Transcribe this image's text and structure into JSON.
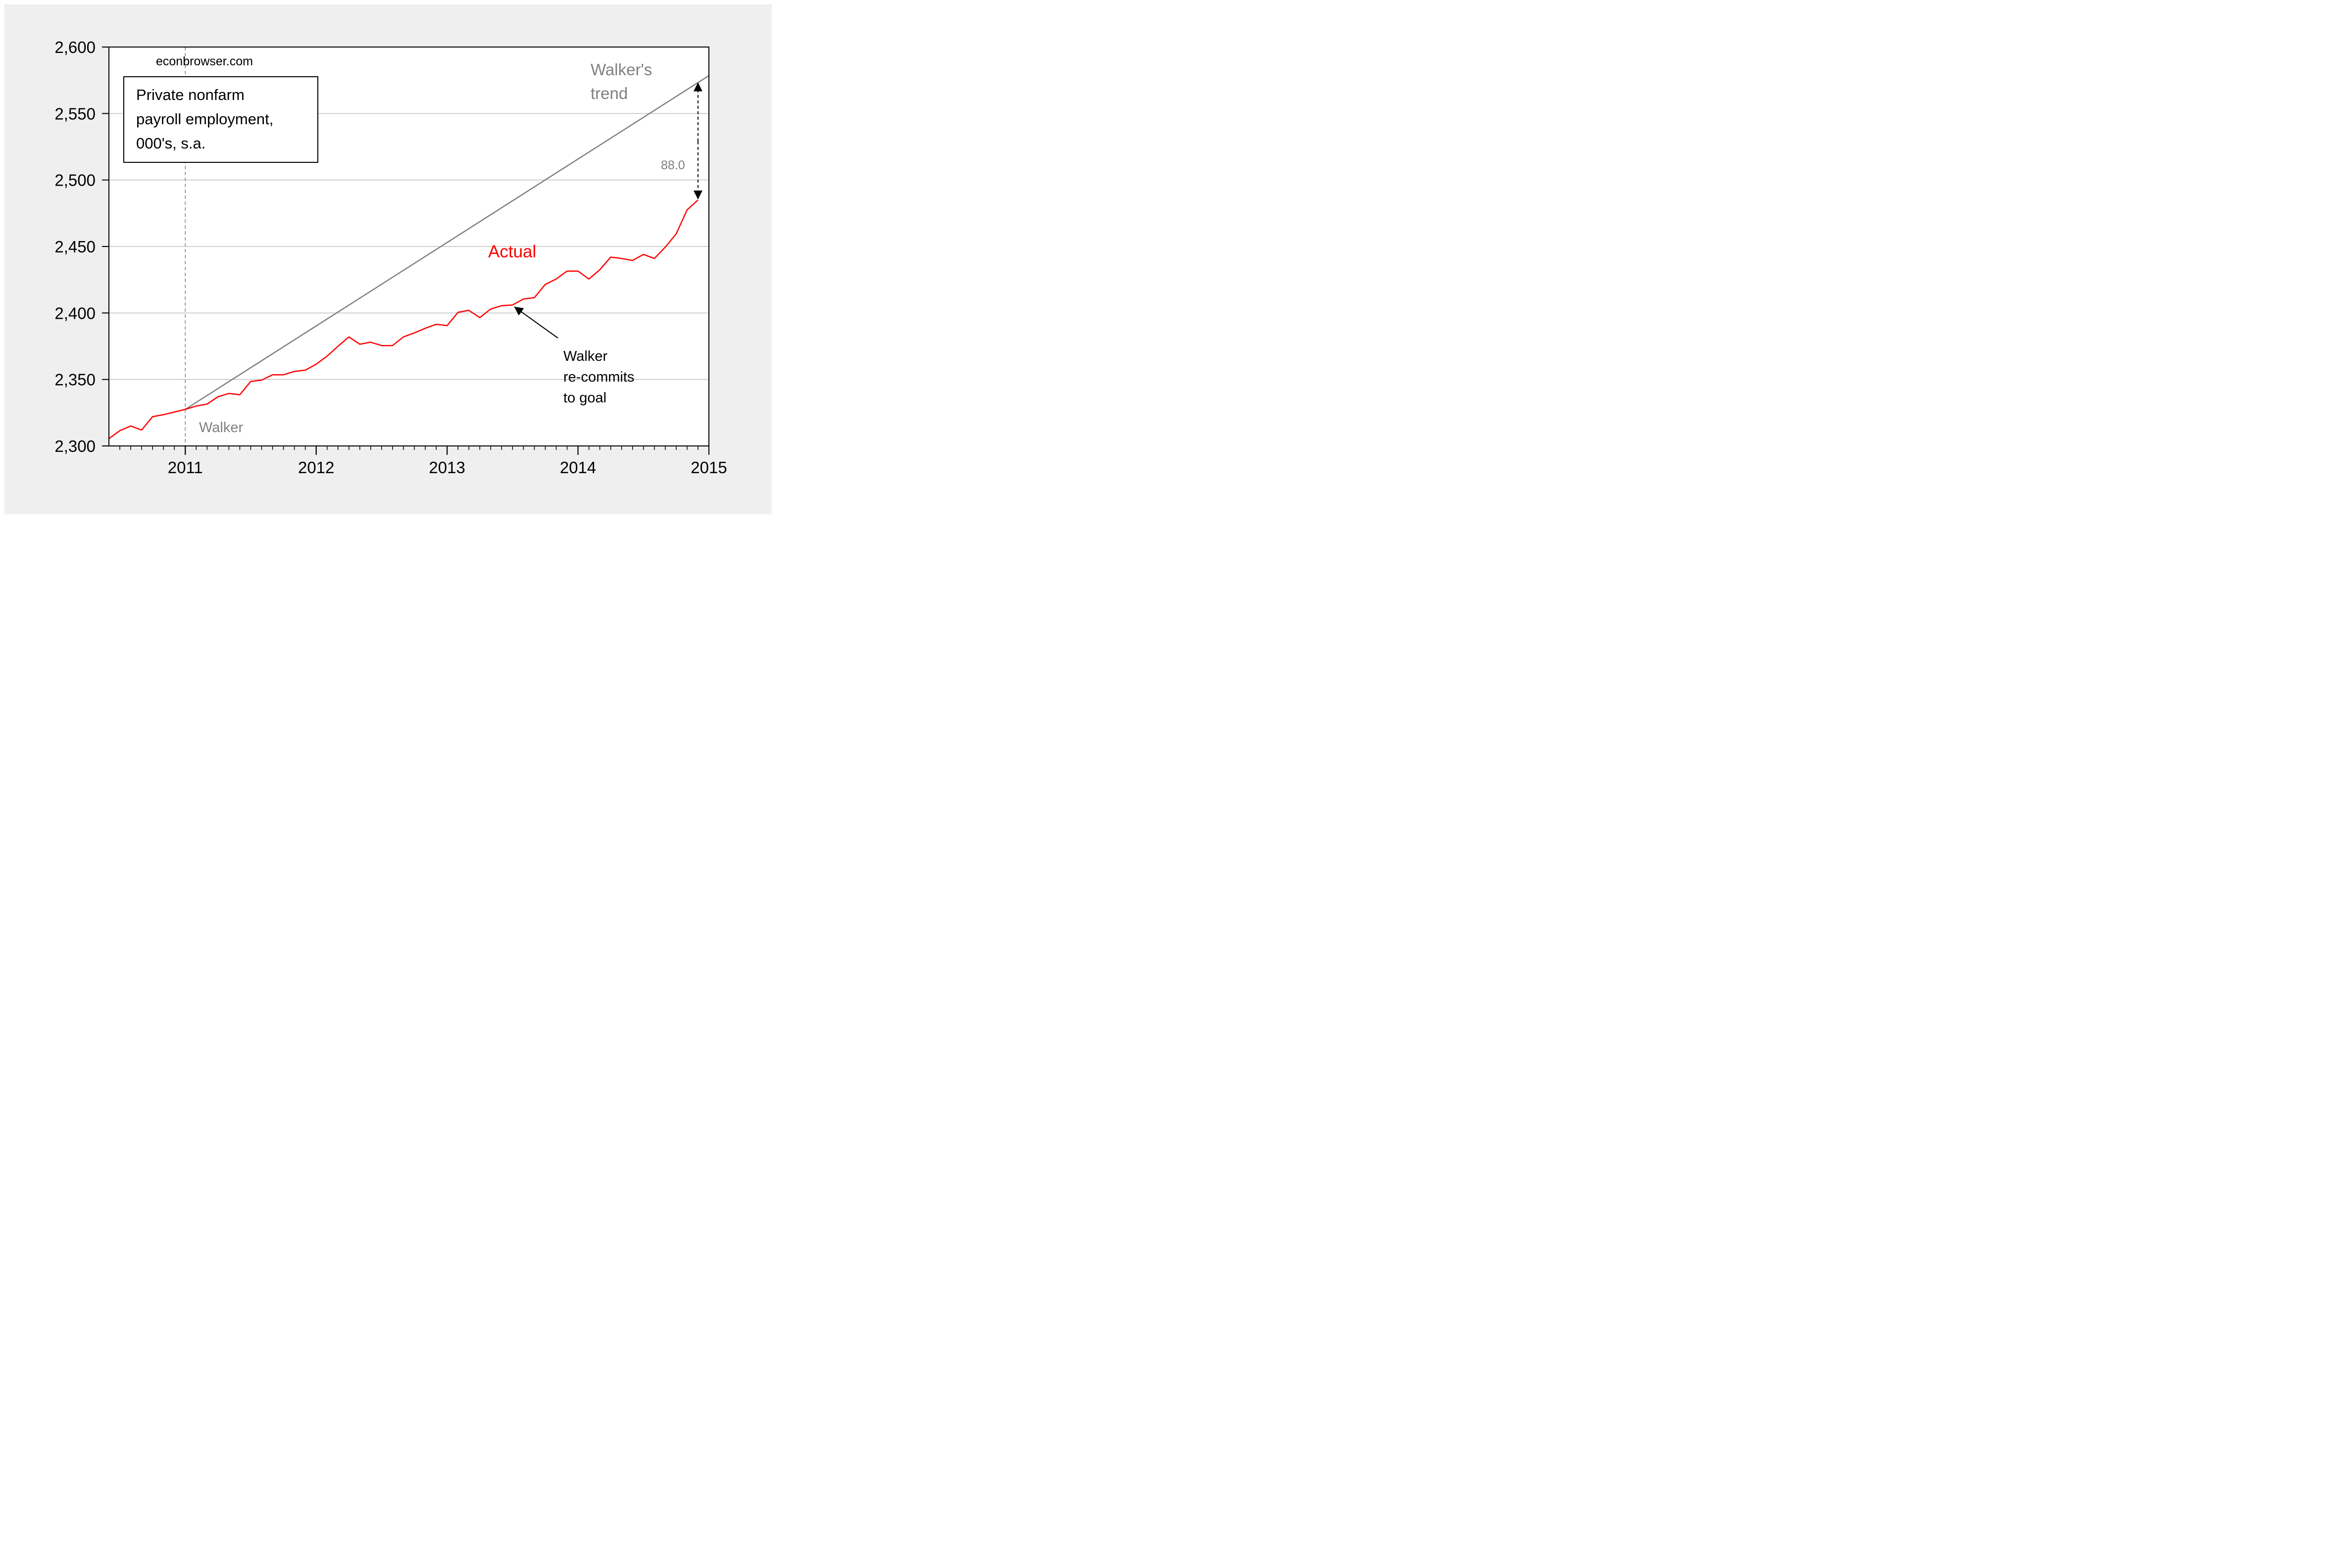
{
  "chart_data": {
    "type": "line",
    "source": "econbrowser.com",
    "title_box": [
      "Private nonfarm",
      "payroll employment,",
      "000's, s.a."
    ],
    "x_ticks": [
      "2011",
      "2012",
      "2013",
      "2014",
      "2015"
    ],
    "xlim": [
      "2010-06",
      "2015-01"
    ],
    "y_ticks": [
      "2,300",
      "2,350",
      "2,400",
      "2,450",
      "2,500",
      "2,550",
      "2,600"
    ],
    "ylim": [
      2300,
      2600
    ],
    "grid": true,
    "series": [
      {
        "name": "Actual",
        "color": "#ff0000",
        "x": [
          "2010-06",
          "2010-07",
          "2010-08",
          "2010-09",
          "2010-10",
          "2010-11",
          "2010-12",
          "2011-01",
          "2011-02",
          "2011-03",
          "2011-04",
          "2011-05",
          "2011-06",
          "2011-07",
          "2011-08",
          "2011-09",
          "2011-10",
          "2011-11",
          "2011-12",
          "2012-01",
          "2012-02",
          "2012-03",
          "2012-04",
          "2012-05",
          "2012-06",
          "2012-07",
          "2012-08",
          "2012-09",
          "2012-10",
          "2012-11",
          "2012-12",
          "2013-01",
          "2013-02",
          "2013-03",
          "2013-04",
          "2013-05",
          "2013-06",
          "2013-07",
          "2013-08",
          "2013-09",
          "2013-10",
          "2013-11",
          "2013-12",
          "2014-01",
          "2014-02",
          "2014-03",
          "2014-04",
          "2014-05",
          "2014-06",
          "2014-07",
          "2014-08",
          "2014-09",
          "2014-10",
          "2014-11",
          "2014-12"
        ],
        "values": [
          2305.5,
          2311.5,
          2315.0,
          2312.0,
          2322.0,
          2323.5,
          2325.5,
          2327.5,
          2330.0,
          2331.5,
          2337.0,
          2339.5,
          2338.5,
          2348.5,
          2349.5,
          2353.5,
          2353.5,
          2356.0,
          2357.0,
          2361.5,
          2367.5,
          2375.0,
          2382.0,
          2376.5,
          2378.0,
          2375.5,
          2375.5,
          2382.0,
          2385.0,
          2388.5,
          2391.5,
          2390.5,
          2400.5,
          2402.0,
          2396.5,
          2403.0,
          2405.5,
          2406.0,
          2410.5,
          2411.5,
          2421.5,
          2425.5,
          2431.5,
          2431.5,
          2425.5,
          2432.5,
          2442.0,
          2441.0,
          2439.5,
          2444.0,
          2441.0,
          2449.5,
          2459.5,
          2477.5,
          2485.0
        ]
      },
      {
        "name": "Walker's trend",
        "color": "#808080",
        "x": [
          "2011-01",
          "2015-01"
        ],
        "values": [
          2327.5,
          2578.5
        ]
      }
    ],
    "annotations": {
      "walker_label": "Walker",
      "walker_date": "2011-01",
      "trend_label": [
        "Walker's",
        "trend"
      ],
      "actual_label": "Actual",
      "recommit_label": [
        "Walker",
        "re-commits",
        "to goal"
      ],
      "recommit_date": "2013-07",
      "gap_value": "88.0",
      "gap_date": "2014-12",
      "gap_from": 2573.0,
      "gap_to": 2485.0
    }
  }
}
